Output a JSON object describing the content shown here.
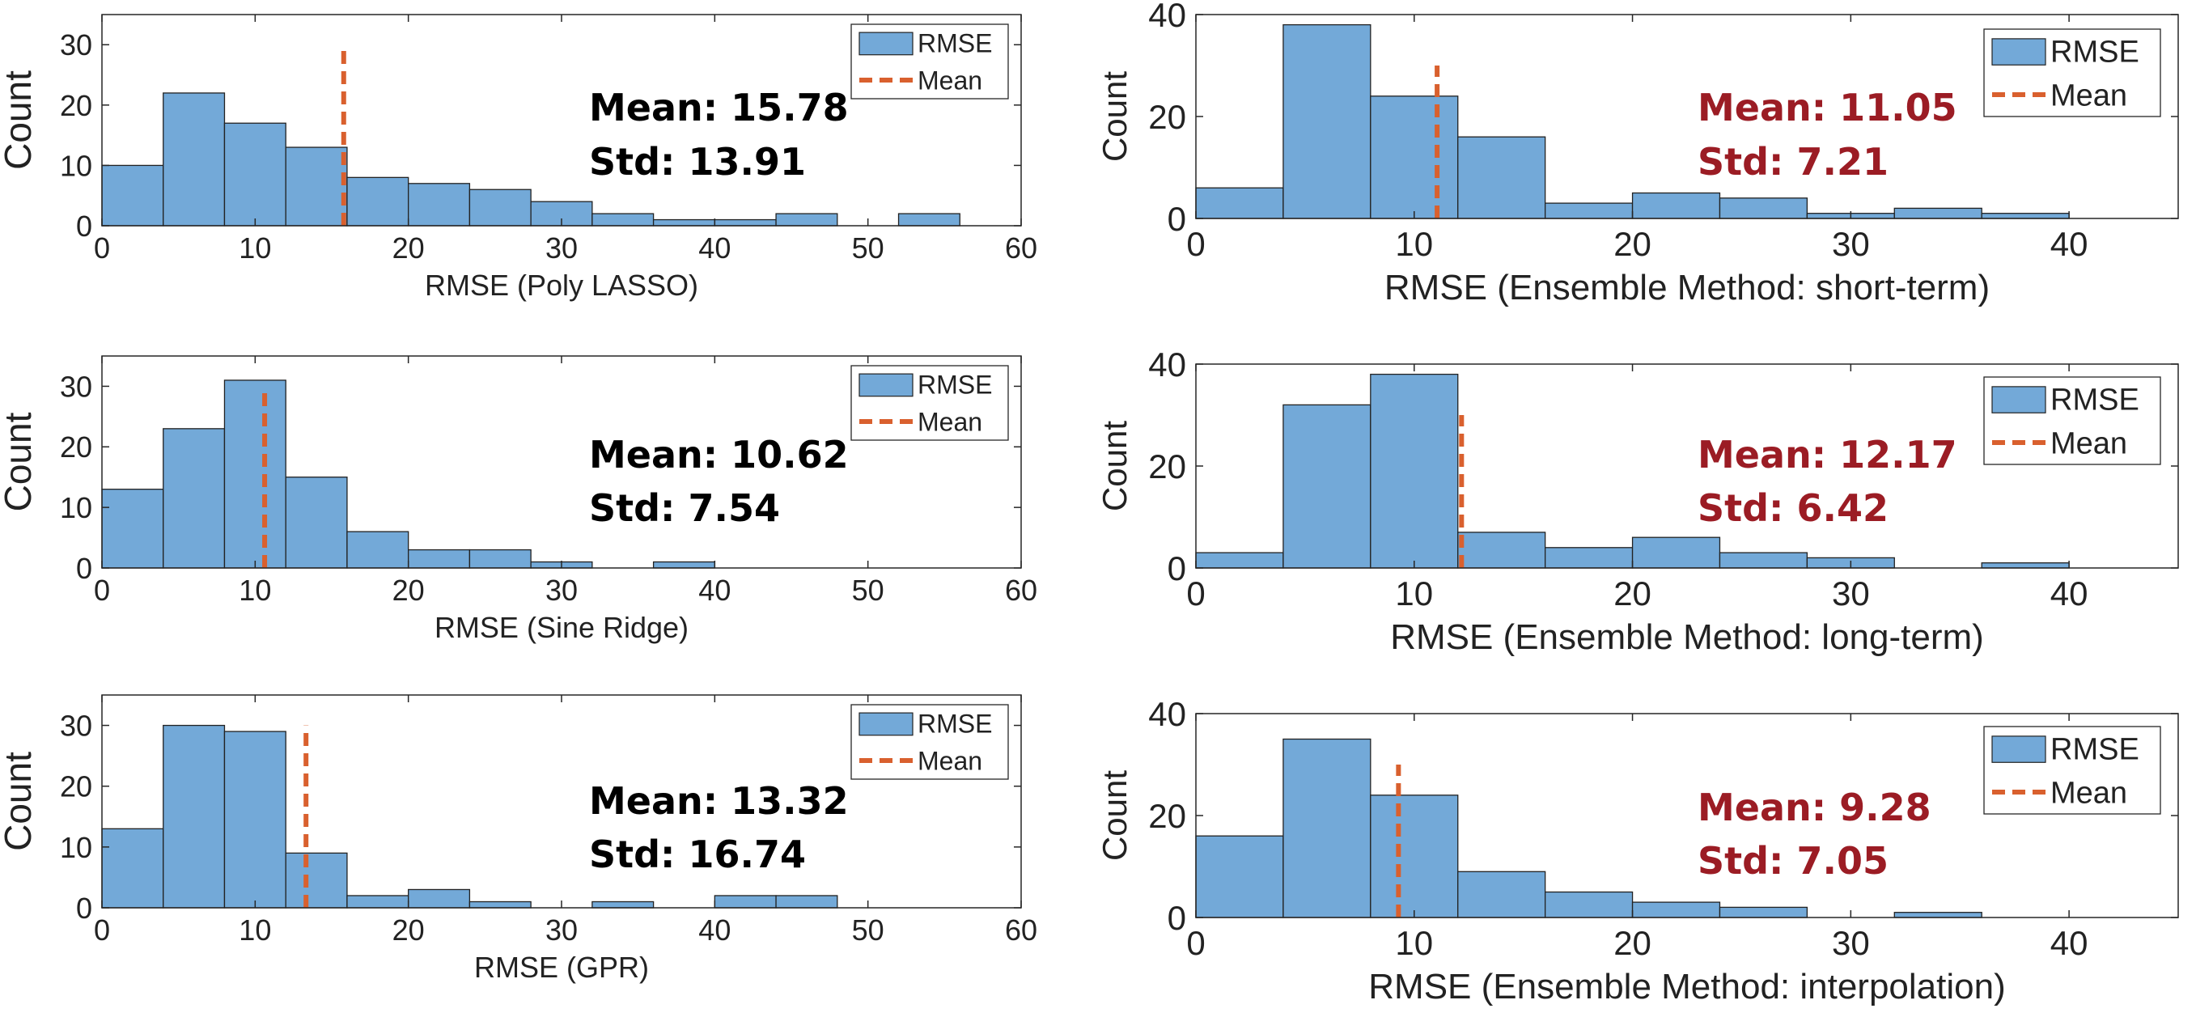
{
  "figure": {
    "bar_color": "#73a9d8",
    "bar_edge": "#222222",
    "mean_color": "#d9602e",
    "stat_black": "#000000",
    "stat_red": "#9b1c24"
  },
  "chart_data": [
    {
      "type": "bar",
      "panel": "left-top",
      "xlabel": "RMSE (Poly LASSO)",
      "ylabel": "Count",
      "xlim": [
        0,
        60
      ],
      "ylim": [
        0,
        35
      ],
      "xticks": [
        0,
        10,
        20,
        30,
        40,
        50,
        60
      ],
      "yticks": [
        0,
        10,
        20,
        30
      ],
      "bin_width": 4,
      "bin_edges_start": 0,
      "values": [
        10,
        22,
        17,
        13,
        8,
        7,
        6,
        4,
        2,
        1,
        1,
        2,
        0,
        2
      ],
      "mean_line": {
        "x": 15.78,
        "ymax": 30
      },
      "legend": [
        "RMSE",
        "Mean"
      ],
      "legend_position": "top-right",
      "stats": {
        "mean": "Mean: 15.78",
        "std": "Std: 13.91",
        "color": "black"
      }
    },
    {
      "type": "bar",
      "panel": "left-middle",
      "xlabel": "RMSE (Sine Ridge)",
      "ylabel": "Count",
      "xlim": [
        0,
        60
      ],
      "ylim": [
        0,
        35
      ],
      "xticks": [
        0,
        10,
        20,
        30,
        40,
        50,
        60
      ],
      "yticks": [
        0,
        10,
        20,
        30
      ],
      "bin_width": 4,
      "bin_edges_start": 0,
      "values": [
        13,
        23,
        31,
        15,
        6,
        3,
        3,
        1,
        0,
        1
      ],
      "mean_line": {
        "x": 10.62,
        "ymax": 30
      },
      "legend": [
        "RMSE",
        "Mean"
      ],
      "legend_position": "top-right",
      "stats": {
        "mean": "Mean: 10.62",
        "std": "Std: 7.54",
        "color": "black"
      }
    },
    {
      "type": "bar",
      "panel": "left-bottom",
      "xlabel": "RMSE (GPR)",
      "ylabel": "Count",
      "xlim": [
        0,
        60
      ],
      "ylim": [
        0,
        35
      ],
      "xticks": [
        0,
        10,
        20,
        30,
        40,
        50,
        60
      ],
      "yticks": [
        0,
        10,
        20,
        30
      ],
      "bin_width": 4,
      "bin_edges_start": 0,
      "values": [
        13,
        30,
        29,
        9,
        2,
        3,
        1,
        0,
        1,
        0,
        2,
        2
      ],
      "mean_line": {
        "x": 13.32,
        "ymax": 30
      },
      "legend": [
        "RMSE",
        "Mean"
      ],
      "legend_position": "top-right",
      "stats": {
        "mean": "Mean: 13.32",
        "std": "Std: 16.74",
        "color": "black"
      }
    },
    {
      "type": "bar",
      "panel": "right-top",
      "xlabel": "RMSE (Ensemble Method: short-term)",
      "ylabel": "Count",
      "xlim": [
        0,
        45
      ],
      "ylim": [
        0,
        40
      ],
      "xticks": [
        0,
        10,
        20,
        30,
        40
      ],
      "yticks": [
        0,
        20,
        40
      ],
      "bin_width": 4,
      "bin_edges_start": 0,
      "values": [
        6,
        38,
        24,
        16,
        3,
        5,
        4,
        1,
        2,
        1
      ],
      "mean_line": {
        "x": 11.05,
        "ymax": 30
      },
      "legend": [
        "RMSE",
        "Mean"
      ],
      "legend_position": "top-right",
      "stats": {
        "mean": "Mean: 11.05",
        "std": "Std: 7.21",
        "color": "red"
      }
    },
    {
      "type": "bar",
      "panel": "right-middle",
      "xlabel": "RMSE (Ensemble Method: long-term)",
      "ylabel": "Count",
      "xlim": [
        0,
        45
      ],
      "ylim": [
        0,
        40
      ],
      "xticks": [
        0,
        10,
        20,
        30,
        40
      ],
      "yticks": [
        0,
        20,
        40
      ],
      "bin_width": 4,
      "bin_edges_start": 0,
      "values": [
        3,
        32,
        38,
        7,
        4,
        6,
        3,
        2,
        0,
        1
      ],
      "mean_line": {
        "x": 12.17,
        "ymax": 30
      },
      "legend": [
        "RMSE",
        "Mean"
      ],
      "legend_position": "top-right",
      "stats": {
        "mean": "Mean: 12.17",
        "std": "Std: 6.42",
        "color": "red"
      }
    },
    {
      "type": "bar",
      "panel": "right-bottom",
      "xlabel": "RMSE (Ensemble Method: interpolation)",
      "ylabel": "Count",
      "xlim": [
        0,
        45
      ],
      "ylim": [
        0,
        40
      ],
      "xticks": [
        0,
        10,
        20,
        30,
        40
      ],
      "yticks": [
        0,
        20,
        40
      ],
      "bin_width": 4,
      "bin_edges_start": 0,
      "values": [
        16,
        35,
        24,
        9,
        5,
        3,
        2,
        0,
        1
      ],
      "mean_line": {
        "x": 9.28,
        "ymax": 30
      },
      "legend": [
        "RMSE",
        "Mean"
      ],
      "legend_position": "top-right",
      "stats": {
        "mean": "Mean: 9.28",
        "std": "Std: 7.05",
        "color": "red"
      }
    }
  ]
}
